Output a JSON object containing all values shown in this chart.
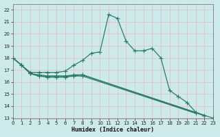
{
  "xlabel": "Humidex (Indice chaleur)",
  "background_color": "#cceaea",
  "grid_color": "#e8b8b8",
  "line_color": "#2a7a6a",
  "xlim": [
    0,
    23
  ],
  "ylim": [
    13,
    22.5
  ],
  "yticks": [
    13,
    14,
    15,
    16,
    17,
    18,
    19,
    20,
    21,
    22
  ],
  "xticks": [
    0,
    1,
    2,
    3,
    4,
    5,
    6,
    7,
    8,
    9,
    10,
    11,
    12,
    13,
    14,
    15,
    16,
    17,
    18,
    19,
    20,
    21,
    22,
    23
  ],
  "curves": [
    {
      "x": [
        0,
        1,
        2,
        3,
        4,
        5,
        6,
        7,
        8,
        9,
        10,
        11,
        12,
        13,
        14,
        15,
        16,
        17,
        18,
        19,
        20,
        21,
        22
      ],
      "y": [
        18.0,
        17.4,
        16.8,
        16.8,
        16.8,
        16.8,
        16.9,
        17.4,
        17.8,
        18.4,
        18.5,
        21.6,
        21.3,
        19.4,
        18.6,
        18.6,
        18.8,
        18.0,
        15.3,
        14.8,
        14.3,
        13.5,
        13.2
      ],
      "markers_at": [
        0,
        1,
        2,
        3,
        4,
        5,
        6,
        7,
        8,
        9,
        10,
        11,
        12,
        13,
        14,
        15,
        16,
        17,
        18,
        19,
        20,
        21,
        22
      ]
    },
    {
      "x": [
        0,
        1,
        2,
        3,
        4,
        5,
        6,
        7,
        8,
        23
      ],
      "y": [
        18.0,
        17.4,
        16.7,
        16.6,
        16.5,
        16.5,
        16.5,
        16.6,
        16.6,
        13.0
      ],
      "markers_at": [
        0,
        1,
        2,
        3,
        4,
        5,
        6,
        7,
        8,
        23
      ]
    },
    {
      "x": [
        0,
        1,
        2,
        3,
        4,
        5,
        6,
        7,
        8,
        22
      ],
      "y": [
        18.0,
        17.4,
        16.7,
        16.5,
        16.5,
        16.5,
        16.5,
        16.5,
        16.6,
        13.2
      ],
      "markers_at": [
        0,
        1,
        2,
        3,
        4,
        5,
        6,
        7,
        8,
        22
      ]
    },
    {
      "x": [
        0,
        1,
        2,
        3,
        4,
        5,
        6,
        7,
        8,
        21
      ],
      "y": [
        18.0,
        17.4,
        16.7,
        16.5,
        16.4,
        16.4,
        16.4,
        16.5,
        16.5,
        13.4
      ],
      "markers_at": [
        0,
        1,
        2,
        3,
        4,
        5,
        6,
        7,
        8,
        21
      ]
    }
  ]
}
